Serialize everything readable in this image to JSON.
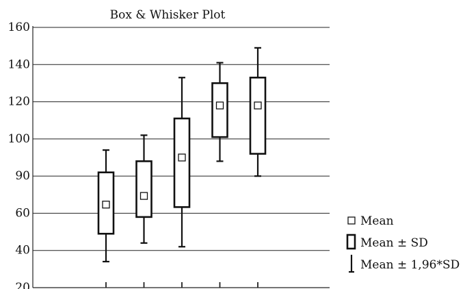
{
  "chart_data": {
    "type": "box",
    "title": "Box & Whisker Plot",
    "xlabel": "",
    "ylabel": "",
    "y_ticks": [
      "20",
      "40",
      "60",
      "90",
      "100",
      "120",
      "140",
      "160"
    ],
    "grid": true,
    "legend_position": "bottom-right",
    "legend": {
      "mean": "Mean",
      "sd": "Mean ± SD",
      "ci": "Mean ± 1,96*SD"
    },
    "series": [
      {
        "mean": 67,
        "sd_low": 49,
        "sd_high": 91,
        "ci_low": 34,
        "ci_high": 97
      },
      {
        "mean": 74,
        "sd_low": 58,
        "sd_high": 94,
        "ci_low": 44,
        "ci_high": 102
      },
      {
        "mean": 95,
        "sd_low": 65,
        "sd_high": 111,
        "ci_low": 42,
        "ci_high": 133
      },
      {
        "mean": 118,
        "sd_low": 101,
        "sd_high": 130,
        "ci_low": 94,
        "ci_high": 141
      },
      {
        "mean": 118,
        "sd_low": 96,
        "sd_high": 133,
        "ci_low": 90,
        "ci_high": 149
      }
    ]
  }
}
